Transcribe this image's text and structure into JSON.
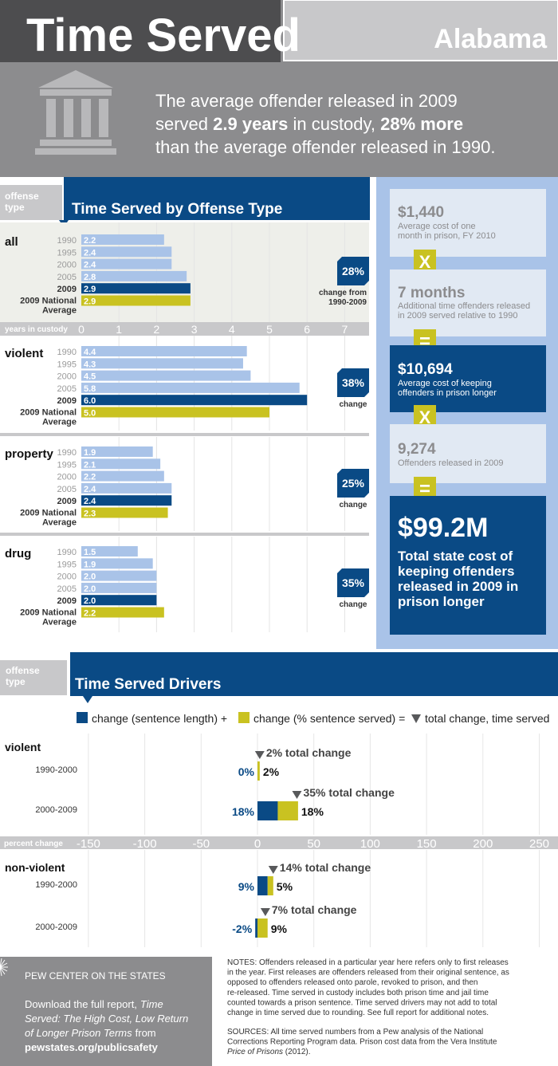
{
  "header": {
    "title": "Time Served",
    "state": "Alabama",
    "intro_parts": [
      "The average offender released in 2009",
      "served ",
      "2.9 years",
      " in custody, ",
      "28% more",
      "than the average offender released in 1990."
    ]
  },
  "colors": {
    "dark_blue": "#0a4a85",
    "light_blue": "#a9c3e8",
    "yellow": "#c9c221",
    "gray": "#8c8c8e",
    "panel_bg": "#eeefea"
  },
  "icons": {
    "header": "courthouse-icon",
    "footer": "pew-sunburst-icon",
    "marker": "down-triangle-icon"
  },
  "offense_section": {
    "tab_label_1": "offense",
    "tab_label_2": "type",
    "title": "Time Served by Offense Type",
    "axis_label": "years in custody",
    "ticks": [
      "0",
      "1",
      "2",
      "3",
      "4",
      "5",
      "6",
      "7"
    ]
  },
  "chart_data": [
    {
      "type": "bar",
      "title": "Time Served by Offense Type",
      "xlabel": "years in custody",
      "xlim": [
        0,
        7
      ],
      "categories": [
        "1990",
        "1995",
        "2000",
        "2005",
        "2009",
        "2009 National Average"
      ],
      "groups": [
        {
          "name": "all",
          "values": [
            2.2,
            2.4,
            2.4,
            2.8,
            2.9,
            2.9
          ],
          "labels": [
            "2.2",
            "2.4",
            "2.4",
            "2.8",
            "2.9",
            "2.9"
          ],
          "change": "28%",
          "change_line1": "change from",
          "change_line2": "1990-2009"
        },
        {
          "name": "violent",
          "values": [
            4.4,
            4.3,
            4.5,
            5.8,
            6.0,
            5.0
          ],
          "labels": [
            "4.4",
            "4.3",
            "4.5",
            "5.8",
            "6.0",
            "5.0"
          ],
          "change": "38%",
          "change_line1": "change",
          "change_line2": ""
        },
        {
          "name": "property",
          "values": [
            1.9,
            2.1,
            2.2,
            2.4,
            2.4,
            2.3
          ],
          "labels": [
            "1.9",
            "2.1",
            "2.2",
            "2.4",
            "2.4",
            "2.3"
          ],
          "change": "25%",
          "change_line1": "change",
          "change_line2": ""
        },
        {
          "name": "drug",
          "values": [
            1.5,
            1.9,
            2.0,
            2.0,
            2.0,
            2.2
          ],
          "labels": [
            "1.5",
            "1.9",
            "2.0",
            "2.0",
            "2.0",
            "2.2"
          ],
          "change": "35%",
          "change_line1": "change",
          "change_line2": ""
        }
      ]
    },
    {
      "type": "bar",
      "title": "Time Served Drivers",
      "xlabel": "percent change",
      "xlim": [
        -150,
        250
      ],
      "ticks": [
        "-150",
        "-100",
        "-50",
        "0",
        "50",
        "100",
        "150",
        "200",
        "250"
      ],
      "legend": {
        "sentence_length": "change (sentence length) +",
        "pct_served": "change (% sentence served) =",
        "total": "total change, time served"
      },
      "groups": [
        {
          "name": "violent",
          "rows": [
            {
              "period": "1990-2000",
              "sentence": 0,
              "served": 2,
              "total": 2,
              "sentence_label": "0%",
              "served_label": "2%",
              "total_label": "2% total change"
            },
            {
              "period": "2000-2009",
              "sentence": 18,
              "served": 18,
              "total": 35,
              "sentence_label": "18%",
              "served_label": "18%",
              "total_label": "35% total change"
            }
          ]
        },
        {
          "name": "non-violent",
          "rows": [
            {
              "period": "1990-2000",
              "sentence": 9,
              "served": 5,
              "total": 14,
              "sentence_label": "9%",
              "served_label": "5%",
              "total_label": "14% total change"
            },
            {
              "period": "2000-2009",
              "sentence": -2,
              "served": 9,
              "total": 7,
              "sentence_label": "-2%",
              "served_label": "9%",
              "total_label": "7% total change"
            }
          ]
        }
      ]
    }
  ],
  "cost_panel": {
    "op_x": "X",
    "op_eq": "=",
    "box1_value": "$1,440",
    "box1_line1": "Average cost of one",
    "box1_line2": "month in prison, FY 2010",
    "box2_value": "7 months",
    "box2_line1": "Additional time offenders released",
    "box2_line2": "in 2009 served relative to 1990",
    "box3_value": "$10,694",
    "box3_line1": "Average cost of keeping",
    "box3_line2": "offenders in prison longer",
    "box4_value": "9,274",
    "box4_line1": "Offenders released in 2009",
    "box5_value": "$99.2M",
    "box5_lines": [
      "Total state cost of",
      "keeping offenders",
      "released in 2009 in",
      "prison longer"
    ]
  },
  "drivers_section": {
    "tab_label_1": "offense",
    "tab_label_2": "type",
    "title": "Time Served Drivers"
  },
  "footer": {
    "org": "PEW CENTER ON THE STATES",
    "download_line1": "Download the full report,",
    "report_title_1": "Time",
    "report_title_2": "Served: The High Cost, Low Return",
    "report_title_3": "of Longer Prison Terms",
    "from": "from",
    "url": "pewstates.org/publicsafety",
    "notes_lines": [
      "NOTES: Offenders released in a particular year here refers only to first releases",
      "in the year. First releases are offenders released from their original sentence, as",
      "opposed to offenders released onto parole, revoked to prison, and then",
      "re-released. Time served in custody includes both prison time and jail time",
      "counted towards a prison sentence. Time served drivers may not add to total",
      "change in time served due to rounding. See full report for additional notes."
    ],
    "sources_lines": [
      "SOURCES: All time served numbers from a Pew analysis of the National",
      "Corrections Reporting Program data. Prison cost data from the Vera Institute"
    ],
    "sources_italic": "Price of Prisons",
    "sources_tail": " (2012)."
  }
}
